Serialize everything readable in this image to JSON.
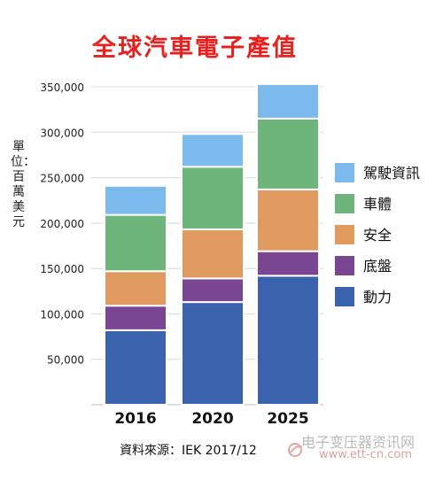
{
  "title": "全球汽車電子產值",
  "y_axis_label": "單位：百萬美元",
  "source": "資料來源：IEK 2017/12",
  "watermark": {
    "site_name": "电子变压器资讯网",
    "url": "www.ett-cn.com"
  },
  "chart_data": {
    "type": "bar",
    "stacked": true,
    "title": "全球汽車電子產值",
    "ylabel": "單位：百萬美元",
    "categories": [
      "2016",
      "2020",
      "2025"
    ],
    "ylim": [
      0,
      350000
    ],
    "yticks": [
      "350,000",
      "300,000",
      "250,000",
      "200,000",
      "150,000",
      "100,000",
      "50,000"
    ],
    "ytick_values": [
      350000,
      300000,
      250000,
      200000,
      150000,
      100000,
      50000
    ],
    "grid": true,
    "legend_position": "right",
    "series": [
      {
        "name": "動力",
        "color": "#3b63ad",
        "values": [
          82000,
          113000,
          142000
        ]
      },
      {
        "name": "底盤",
        "color": "#7a4692",
        "values": [
          27000,
          26000,
          27000
        ]
      },
      {
        "name": "安全",
        "color": "#e09a5f",
        "values": [
          38000,
          54000,
          68000
        ]
      },
      {
        "name": "車體",
        "color": "#6db57a",
        "values": [
          62000,
          69000,
          78000
        ]
      },
      {
        "name": "駕駛資訊",
        "color": "#7cb9ec",
        "values": [
          32000,
          36000,
          38000
        ]
      }
    ],
    "legend_order": [
      "駕駛資訊",
      "車體",
      "安全",
      "底盤",
      "動力"
    ]
  }
}
